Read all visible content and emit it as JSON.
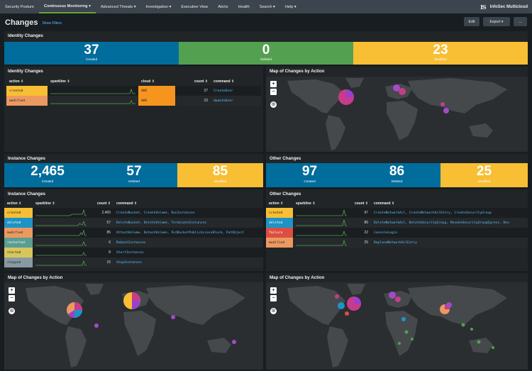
{
  "nav": {
    "items": [
      "Security Posture",
      "Continuous Monitoring ▾",
      "Advanced Threats ▾",
      "Investigation ▾",
      "Executive View",
      "Alerts",
      "Health",
      "Search ▾",
      "Help ▾"
    ],
    "brand_logo": "IS",
    "brand_name": "InfoSec Multicloud"
  },
  "header": {
    "title": "Changes",
    "show_filters": "Show Filters",
    "edit": "Edit",
    "export": "Export ▾",
    "more": "..."
  },
  "identity": {
    "title": "Identity Changes",
    "kpis": [
      {
        "value": "37",
        "label": "Created"
      },
      {
        "value": "0",
        "label": "Deleted"
      },
      {
        "value": "23",
        "label": "Modified"
      }
    ],
    "table_title": "Identity Changes",
    "columns": [
      "action ⇕",
      "sparkline ⇕",
      "cloud ⇕",
      "count ⇕",
      "command ⇕"
    ],
    "rows": [
      {
        "action": "created",
        "cloud": "AWS",
        "count": "37",
        "command": "CreateUser"
      },
      {
        "action": "modified",
        "cloud": "AWS",
        "count": "23",
        "command": "UpdateUser"
      }
    ],
    "map_title": "Map of Changes by Action"
  },
  "instance": {
    "title": "Instance Changes",
    "kpis": [
      {
        "value": "2,465",
        "label": "Created"
      },
      {
        "value": "57",
        "label": "Deleted"
      },
      {
        "value": "85",
        "label": "Modified"
      }
    ],
    "table_title": "Instance Changes",
    "columns": [
      "action ⇕",
      "sparkline ⇕",
      "count ⇕",
      "command ⇕"
    ],
    "rows": [
      {
        "action": "created",
        "count": "2,465",
        "command": "CreateBucket, CreateVolume, RunInstances"
      },
      {
        "action": "deleted",
        "count": "57",
        "command": "DeleteBucket, DeleteVolume, TerminateInstances"
      },
      {
        "action": "modified",
        "count": "85",
        "command": "AttachVolume, DetachVolume, PutBucketPublicAccessBlock, PutObject"
      },
      {
        "action": "restarted",
        "count": "6",
        "command": "RebootInstances"
      },
      {
        "action": "started",
        "count": "8",
        "command": "StartInstances"
      },
      {
        "action": "stopped",
        "count": "15",
        "command": "StopInstances"
      }
    ],
    "map_title": "Map of Changes by Action"
  },
  "other": {
    "title": "Other Changes",
    "kpis": [
      {
        "value": "97",
        "label": "Created"
      },
      {
        "value": "86",
        "label": "Deleted"
      },
      {
        "value": "25",
        "label": "Modified"
      }
    ],
    "table_title": "Other Changes",
    "columns": [
      "action ⇕",
      "sparkline ⇕",
      "count ⇕",
      "command ⇕"
    ],
    "rows": [
      {
        "action": "created",
        "count": "97",
        "command": "CreateNetworkAcl, CreateNetworkAclEntry, CreateSecurityGroup"
      },
      {
        "action": "deleted",
        "count": "86",
        "command": "DeleteNetworkAcl, DeleteSecurityGroup, RevokeSecurityGroupEgress, Rev"
      },
      {
        "action": "failure",
        "count": "22",
        "command": "ConsoleLogin"
      },
      {
        "action": "modified",
        "count": "25",
        "command": "ReplaceNetworkAclEntry"
      }
    ],
    "map_title": "Map of Changes by Action"
  },
  "map_controls": {
    "zoom_in": "+",
    "zoom_out": "−",
    "reset": "⊙"
  },
  "colors": {
    "created": "#f8be34",
    "deleted": "#1e93c6",
    "modified": "#ec9960",
    "failure": "#dc4e41",
    "restarted": "#5a9e93",
    "started": "#d7c65b",
    "stopped": "#8a9aa3",
    "kpi_blue": "#006d9c",
    "kpi_green": "#53a051",
    "kpi_yellow": "#f8be34"
  }
}
